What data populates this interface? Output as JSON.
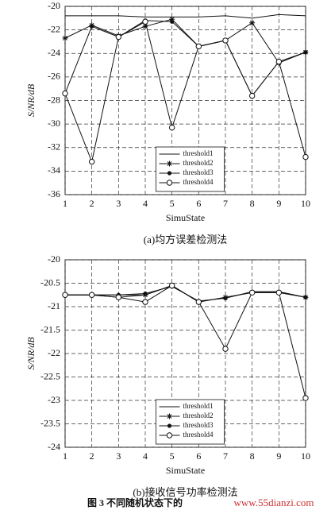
{
  "chart_data": [
    {
      "type": "line",
      "caption": "(a)均方误差检测法",
      "x_label": "SimuState",
      "y_label": "S/NR/dB",
      "x": [
        1,
        2,
        3,
        4,
        5,
        6,
        7,
        8,
        9,
        10
      ],
      "xlim": [
        1,
        10
      ],
      "xticks": [
        1,
        2,
        3,
        4,
        5,
        6,
        7,
        8,
        9,
        10
      ],
      "ylim": [
        -36,
        -20
      ],
      "yticks": [
        -20,
        -22,
        -24,
        -26,
        -28,
        -30,
        -32,
        -34,
        -36
      ],
      "grid": true,
      "legend": "lower center",
      "series": [
        {
          "name": "threshold1",
          "marker": "none",
          "color": "#111111",
          "values": [
            -20.8,
            -20.8,
            -20.8,
            -20.9,
            -20.9,
            -20.9,
            -20.8,
            -21.0,
            -20.7,
            -20.8
          ]
        },
        {
          "name": "threshold2",
          "marker": "star",
          "color": "#111111",
          "values": [
            -22.7,
            -21.6,
            -22.5,
            -21.7,
            -21.1,
            -23.4,
            -22.9,
            -21.4,
            -24.8,
            -23.9
          ]
        },
        {
          "name": "threshold3",
          "marker": "dot",
          "color": "#111111",
          "values": [
            -27.4,
            -21.7,
            -22.6,
            -21.2,
            -21.3,
            -23.4,
            -22.9,
            -27.6,
            -24.7,
            -23.9
          ]
        },
        {
          "name": "threshold4",
          "marker": "circle",
          "color": "#111111",
          "values": [
            -27.4,
            -33.2,
            -22.6,
            -21.3,
            -30.3,
            -23.4,
            -22.9,
            -27.6,
            -24.7,
            -32.8
          ]
        }
      ]
    },
    {
      "type": "line",
      "caption": "(b)接收信号功率检测法",
      "x_label": "SimuState",
      "y_label": "S/NR/dB",
      "x": [
        1,
        2,
        3,
        4,
        5,
        6,
        7,
        8,
        9,
        10
      ],
      "xlim": [
        1,
        10
      ],
      "xticks": [
        1,
        2,
        3,
        4,
        5,
        6,
        7,
        8,
        9,
        10
      ],
      "ylim": [
        -24,
        -20
      ],
      "yticks": [
        -20,
        -20.5,
        -21,
        -21.5,
        -22,
        -22.5,
        -23,
        -23.5,
        -24
      ],
      "grid": true,
      "legend": "lower center",
      "series": [
        {
          "name": "threshold1",
          "marker": "none",
          "color": "#111111",
          "values": [
            -20.75,
            -20.75,
            -20.75,
            -20.75,
            -20.55,
            -20.9,
            -20.8,
            -20.7,
            -20.7,
            -20.8
          ]
        },
        {
          "name": "threshold2",
          "marker": "star",
          "color": "#111111",
          "values": [
            -20.75,
            -20.75,
            -20.8,
            -20.75,
            -20.55,
            -20.9,
            -20.8,
            -20.7,
            -20.7,
            -20.8
          ]
        },
        {
          "name": "threshold3",
          "marker": "dot",
          "color": "#111111",
          "values": [
            -20.75,
            -20.75,
            -20.75,
            -20.72,
            -20.57,
            -20.88,
            -20.82,
            -20.68,
            -20.68,
            -20.8
          ]
        },
        {
          "name": "threshold4",
          "marker": "circle",
          "color": "#111111",
          "values": [
            -20.75,
            -20.75,
            -20.8,
            -20.9,
            -20.55,
            -20.9,
            -21.9,
            -20.7,
            -20.7,
            -22.95
          ]
        }
      ]
    }
  ],
  "figure_caption": "图 3  不同随机状态下的",
  "watermark": "www.55dianzi.com"
}
